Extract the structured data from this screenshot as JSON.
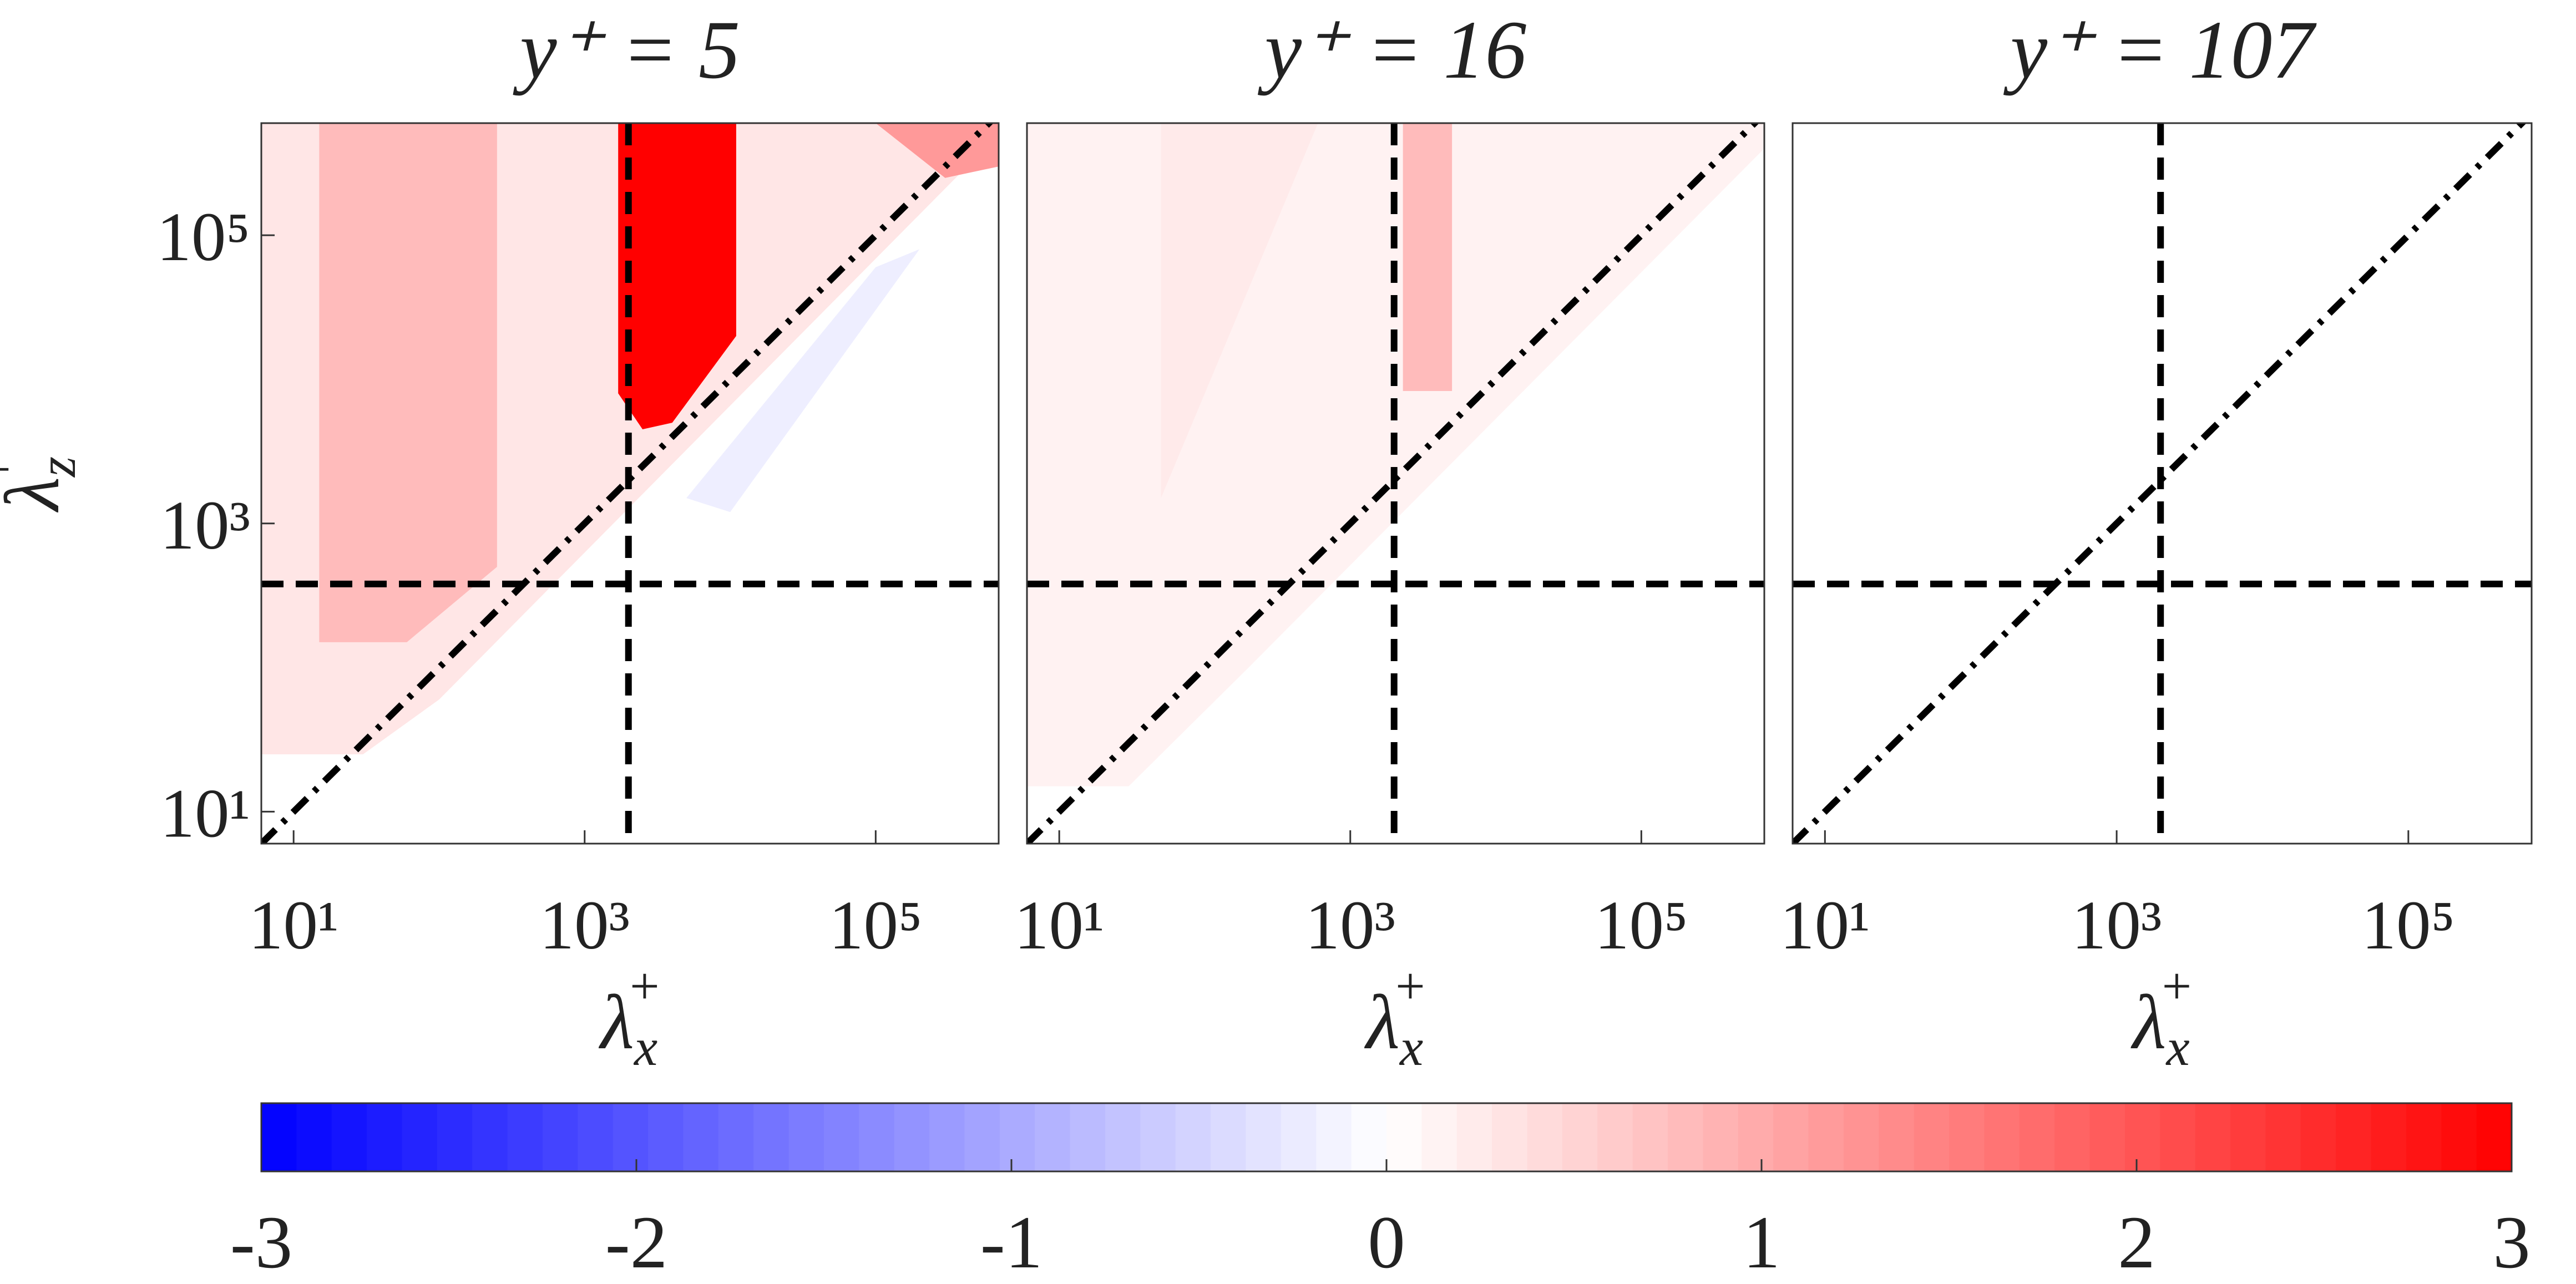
{
  "chart_data": [
    {
      "type": "contour",
      "title": "y⁺ = 5",
      "xlabel": {
        "base": "λ",
        "sub": "x",
        "sup": "+"
      },
      "ylabel": {
        "base": "λ",
        "sub": "z",
        "sup": "+"
      },
      "xlim": [
        6,
        700000
      ],
      "ylim": [
        6,
        600000
      ],
      "xticks": [
        {
          "value": 10,
          "label": "10¹"
        },
        {
          "value": 1000,
          "label": "10³"
        },
        {
          "value": 100000,
          "label": "10⁵"
        }
      ],
      "yticks": [
        {
          "value": 10,
          "label": "10¹"
        },
        {
          "value": 1000,
          "label": "10³"
        },
        {
          "value": 100000,
          "label": "10⁵"
        }
      ],
      "vlines": [
        2000
      ],
      "hlines": [
        380
      ],
      "diagonal": true,
      "regions": [
        {
          "level": 0.3,
          "x": [
            6,
            6,
            700000,
            700000,
            100,
            30
          ],
          "y": [
            25,
            600000,
            600000,
            500000,
            60,
            25
          ]
        },
        {
          "level": 0.8,
          "x": [
            15,
            15,
            250,
            250,
            60
          ],
          "y": [
            150,
            600000,
            600000,
            500,
            150
          ]
        },
        {
          "level": 1.2,
          "x": [
            100000,
            700000,
            700000,
            300000
          ],
          "y": [
            600000,
            600000,
            300000,
            250000
          ]
        },
        {
          "level": -0.2,
          "x": [
            5000,
            100000,
            200000,
            10000
          ],
          "y": [
            1500,
            60000,
            80000,
            1200
          ]
        },
        {
          "level": 3,
          "x": [
            1700,
            11000,
            11000,
            4000,
            2500,
            1700
          ],
          "y": [
            600000,
            600000,
            20000,
            5000,
            4500,
            8000
          ]
        }
      ]
    },
    {
      "type": "contour",
      "title": "y⁺ = 16",
      "xlabel": {
        "base": "λ",
        "sub": "x",
        "sup": "+"
      },
      "xlim": [
        6,
        700000
      ],
      "ylim": [
        6,
        600000
      ],
      "xticks": [
        {
          "value": 10,
          "label": "10¹"
        },
        {
          "value": 1000,
          "label": "10³"
        },
        {
          "value": 100000,
          "label": "10⁵"
        }
      ],
      "vlines": [
        2000
      ],
      "hlines": [
        380
      ],
      "diagonal": true,
      "regions": [
        {
          "level": 0.15,
          "x": [
            6,
            6,
            700000,
            700000,
            200,
            30
          ],
          "y": [
            15,
            600000,
            600000,
            400000,
            100,
            15
          ]
        },
        {
          "level": 0.25,
          "x": [
            50,
            50,
            600
          ],
          "y": [
            600000,
            1500,
            600000
          ]
        },
        {
          "level": 0.8,
          "x": [
            2300,
            5000,
            5000,
            2300
          ],
          "y": [
            600000,
            600000,
            8300,
            8300
          ]
        }
      ]
    },
    {
      "type": "contour",
      "title": "y⁺ = 107",
      "xlabel": {
        "base": "λ",
        "sub": "x",
        "sup": "+"
      },
      "xlim": [
        6,
        700000
      ],
      "ylim": [
        6,
        600000
      ],
      "xticks": [
        {
          "value": 10,
          "label": "10¹"
        },
        {
          "value": 1000,
          "label": "10³"
        },
        {
          "value": 100000,
          "label": "10⁵"
        }
      ],
      "vlines": [
        2000
      ],
      "hlines": [
        380
      ],
      "diagonal": true,
      "regions": []
    },
    {
      "type": "colorbar",
      "xlim": [
        -3,
        3
      ],
      "xticks": [
        -3,
        -2,
        -1,
        0,
        1,
        2,
        3
      ],
      "colors": [
        "#0000ff",
        "#ffffff",
        "#ff0000"
      ]
    }
  ]
}
